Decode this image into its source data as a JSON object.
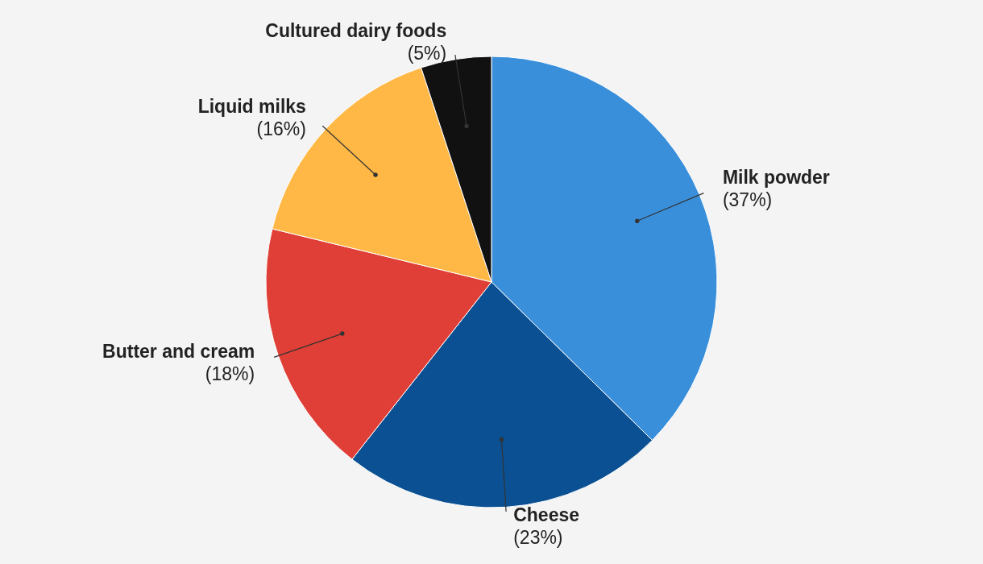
{
  "chart_data": {
    "type": "pie",
    "categories": [
      "Milk powder",
      "Cheese",
      "Butter and cream",
      "Liquid milks",
      "Cultured dairy foods"
    ],
    "values": [
      37,
      23,
      18,
      16,
      5
    ],
    "value_labels": [
      "(37%)",
      "(23%)",
      "(18%)",
      "(16%)",
      "(5%)"
    ],
    "colors": [
      "#3a8fdb",
      "#0a5093",
      "#df3f36",
      "#ffb845",
      "#111111"
    ]
  }
}
